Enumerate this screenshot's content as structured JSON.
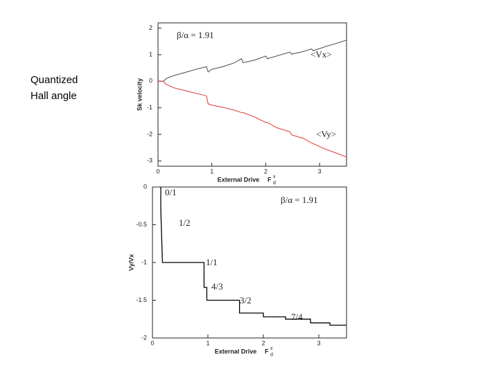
{
  "slide_text": [
    "Quantized",
    "Hall angle"
  ],
  "chart_data": [
    {
      "type": "line",
      "ylabel": "Sk velocity",
      "xlabel": "External Drive",
      "x_symbol": "F",
      "x_symbol_sup": "x",
      "x_symbol_sub": "d",
      "annotations": [
        "β/α = 1.91",
        "<Vx>",
        "<Vy>"
      ],
      "xlim": [
        0,
        3.5
      ],
      "ylim": [
        -3.2,
        2.2
      ],
      "xticks": [
        0,
        1,
        2,
        3
      ],
      "yticks": [
        -3,
        -2,
        -1,
        0,
        1,
        2
      ],
      "series": [
        {
          "color": "#555555",
          "x": [
            0,
            0.1,
            0.15,
            0.3,
            0.5,
            0.7,
            0.9,
            0.93,
            1.0,
            1.2,
            1.4,
            1.55,
            1.58,
            1.8,
            2.0,
            2.03,
            2.2,
            2.45,
            2.48,
            2.7,
            2.85,
            2.88,
            3.1,
            3.3,
            3.5
          ],
          "values": [
            0,
            0,
            0.1,
            0.22,
            0.33,
            0.45,
            0.55,
            0.35,
            0.45,
            0.55,
            0.68,
            0.85,
            0.7,
            0.8,
            0.95,
            0.85,
            0.95,
            1.1,
            1.02,
            1.12,
            1.22,
            1.15,
            1.3,
            1.42,
            1.55
          ]
        },
        {
          "color": "#e04848",
          "x": [
            0,
            0.1,
            0.15,
            0.3,
            0.5,
            0.7,
            0.9,
            0.93,
            1.0,
            1.2,
            1.4,
            1.55,
            1.58,
            1.8,
            2.0,
            2.03,
            2.2,
            2.45,
            2.48,
            2.7,
            2.85,
            2.88,
            3.1,
            3.3,
            3.5
          ],
          "values": [
            0,
            0,
            -0.12,
            -0.25,
            -0.35,
            -0.45,
            -0.55,
            -0.85,
            -0.9,
            -0.98,
            -1.08,
            -1.18,
            -1.18,
            -1.35,
            -1.55,
            -1.55,
            -1.75,
            -1.9,
            -2.02,
            -2.15,
            -2.32,
            -2.35,
            -2.55,
            -2.7,
            -2.85
          ]
        }
      ]
    },
    {
      "type": "line",
      "ylabel": "Vy/Vx",
      "xlabel": "External Drive",
      "x_symbol": "F",
      "x_symbol_sup": "x",
      "x_symbol_sub": "d",
      "annotations": [
        "β/α = 1.91",
        "0/1",
        "1/2",
        "1/1",
        "4/3",
        "3/2",
        "7/4"
      ],
      "xlim": [
        0,
        3.5
      ],
      "ylim": [
        -2,
        0
      ],
      "xticks": [
        0,
        1,
        2,
        3
      ],
      "yticks": [
        0,
        -0.5,
        -1,
        -1.5,
        -2
      ],
      "series": [
        {
          "color": "#000000",
          "x": [
            0.15,
            0.15,
            0.18,
            0.93,
            0.93,
            0.98,
            0.98,
            1.57,
            1.57,
            2.0,
            2.0,
            2.4,
            2.4,
            2.85,
            2.85,
            3.2,
            3.2,
            3.5
          ],
          "values": [
            0,
            -0.3,
            -1,
            -1,
            -1.33,
            -1.33,
            -1.5,
            -1.5,
            -1.67,
            -1.67,
            -1.72,
            -1.72,
            -1.75,
            -1.75,
            -1.8,
            -1.8,
            -1.83,
            -1.83
          ]
        }
      ]
    }
  ]
}
